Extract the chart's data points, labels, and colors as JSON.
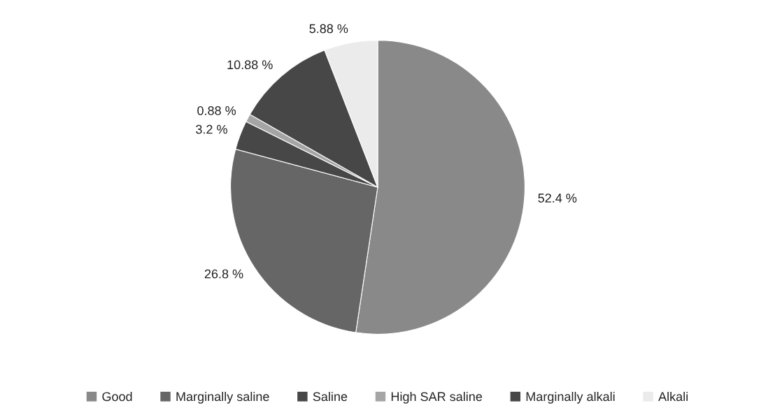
{
  "chart_data": {
    "type": "pie",
    "categories": [
      "Good",
      "Marginally saline",
      "Saline",
      "High SAR saline",
      "Marginally alkali",
      "Alkali"
    ],
    "values": [
      52.4,
      26.8,
      3.2,
      0.88,
      10.88,
      5.88
    ],
    "colors": [
      "#898989",
      "#666666",
      "#474747",
      "#a5a5a5",
      "#474747",
      "#ebebeb"
    ],
    "value_labels": [
      "52.4 %",
      "26.8 %",
      "3.2 %",
      "0.88 %",
      "10.88 %",
      "5.88 %"
    ],
    "legend": "bottom"
  }
}
